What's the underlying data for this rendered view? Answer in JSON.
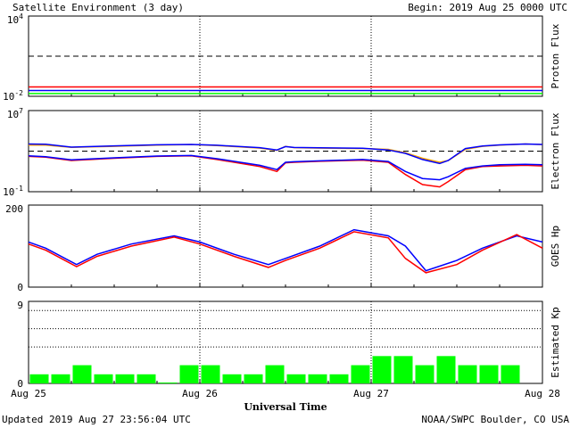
{
  "title": "Satellite Environment (3 day)",
  "begin_label": "Begin:  2019 Aug 25 0000 UTC",
  "footer_left": "Updated 2019 Aug 27 23:56:04 UTC",
  "footer_right": "NOAA/SWPC Boulder, CO USA",
  "xlabel": "Universal Time",
  "x_ticks": [
    "Aug 25",
    "Aug 26",
    "Aug 27",
    "Aug 28"
  ],
  "colors": {
    "red": "#ff0000",
    "blue": "#0000ff",
    "green": "#00ff00",
    "orange": "#ffa500"
  },
  "chart_data": [
    {
      "type": "line",
      "ylabel": "Proton Flux",
      "yscale": "log",
      "ylim": [
        0.01,
        10000
      ],
      "y_tick_labels": [
        "10^4",
        "10^-2"
      ],
      "threshold": 10,
      "x": [
        0,
        0.5,
        1,
        1.5,
        2,
        2.5,
        3
      ],
      "series": [
        {
          "color": "red",
          "values": [
            0.05,
            0.05,
            0.05,
            0.05,
            0.05,
            0.05,
            0.05
          ]
        },
        {
          "color": "blue",
          "values": [
            0.027,
            0.027,
            0.027,
            0.027,
            0.027,
            0.027,
            0.027
          ]
        },
        {
          "color": "green",
          "values": [
            0.016,
            0.016,
            0.016,
            0.016,
            0.016,
            0.016,
            0.016
          ]
        }
      ]
    },
    {
      "type": "line",
      "ylabel": "Electron Flux",
      "yscale": "log",
      "ylim": [
        0.1,
        10000000
      ],
      "y_tick_labels": [
        "10^7",
        "10^-1"
      ],
      "threshold": 1000,
      "x": [
        0,
        0.1,
        0.25,
        0.5,
        0.75,
        0.95,
        1.1,
        1.35,
        1.45,
        1.5,
        1.55,
        1.7,
        1.95,
        2.1,
        2.2,
        2.3,
        2.4,
        2.45,
        2.55,
        2.65,
        2.75,
        2.9,
        3.0
      ],
      "series": [
        {
          "color": "orange",
          "values": [
            4000,
            4000,
            2400,
            3000,
            4000,
            4500,
            3500,
            2000,
            1200,
            3000,
            2200,
            2000,
            1800,
            1500,
            700,
            200,
            80,
            120,
            1500,
            3000,
            4000,
            5000,
            4500
          ]
        },
        {
          "color": "blue",
          "values": [
            5000,
            4800,
            2500,
            3300,
            4200,
            4600,
            3800,
            2200,
            1300,
            2800,
            2300,
            2100,
            1900,
            1300,
            600,
            150,
            60,
            120,
            1800,
            3200,
            4100,
            5000,
            4600
          ]
        },
        {
          "color": "red",
          "values": [
            300,
            250,
            120,
            200,
            300,
            350,
            150,
            30,
            10,
            70,
            80,
            100,
            130,
            80,
            5,
            0.5,
            0.3,
            1,
            15,
            30,
            35,
            40,
            35
          ]
        },
        {
          "color": "blue",
          "values": [
            340,
            280,
            140,
            220,
            330,
            370,
            180,
            40,
            15,
            80,
            90,
            110,
            150,
            95,
            10,
            2,
            1.5,
            3,
            20,
            35,
            45,
            50,
            45
          ]
        }
      ]
    },
    {
      "type": "line",
      "ylabel": "GOES Hp",
      "ylim": [
        0,
        200
      ],
      "y_tick_labels": [
        "200",
        "0"
      ],
      "x": [
        0,
        0.1,
        0.28,
        0.4,
        0.6,
        0.85,
        1.0,
        1.2,
        1.4,
        1.5,
        1.7,
        1.9,
        2.1,
        2.2,
        2.32,
        2.5,
        2.65,
        2.85,
        3.0
      ],
      "series": [
        {
          "color": "blue",
          "values": [
            110,
            95,
            55,
            80,
            105,
            125,
            110,
            80,
            55,
            70,
            100,
            140,
            125,
            100,
            40,
            65,
            95,
            125,
            110
          ]
        },
        {
          "color": "red",
          "values": [
            105,
            90,
            50,
            75,
            100,
            122,
            105,
            75,
            48,
            65,
            95,
            135,
            120,
            70,
            35,
            55,
            90,
            128,
            95
          ]
        }
      ]
    },
    {
      "type": "bar",
      "ylabel": "Estimated Kp",
      "ylim": [
        0,
        9
      ],
      "y_tick_labels": [
        "9",
        "0"
      ],
      "values": [
        1,
        1,
        2,
        1,
        1,
        1,
        0,
        2,
        2,
        1,
        1,
        2,
        1,
        1,
        1,
        2,
        3,
        3,
        2,
        3,
        2,
        2,
        2
      ],
      "bar_color": "green"
    }
  ]
}
